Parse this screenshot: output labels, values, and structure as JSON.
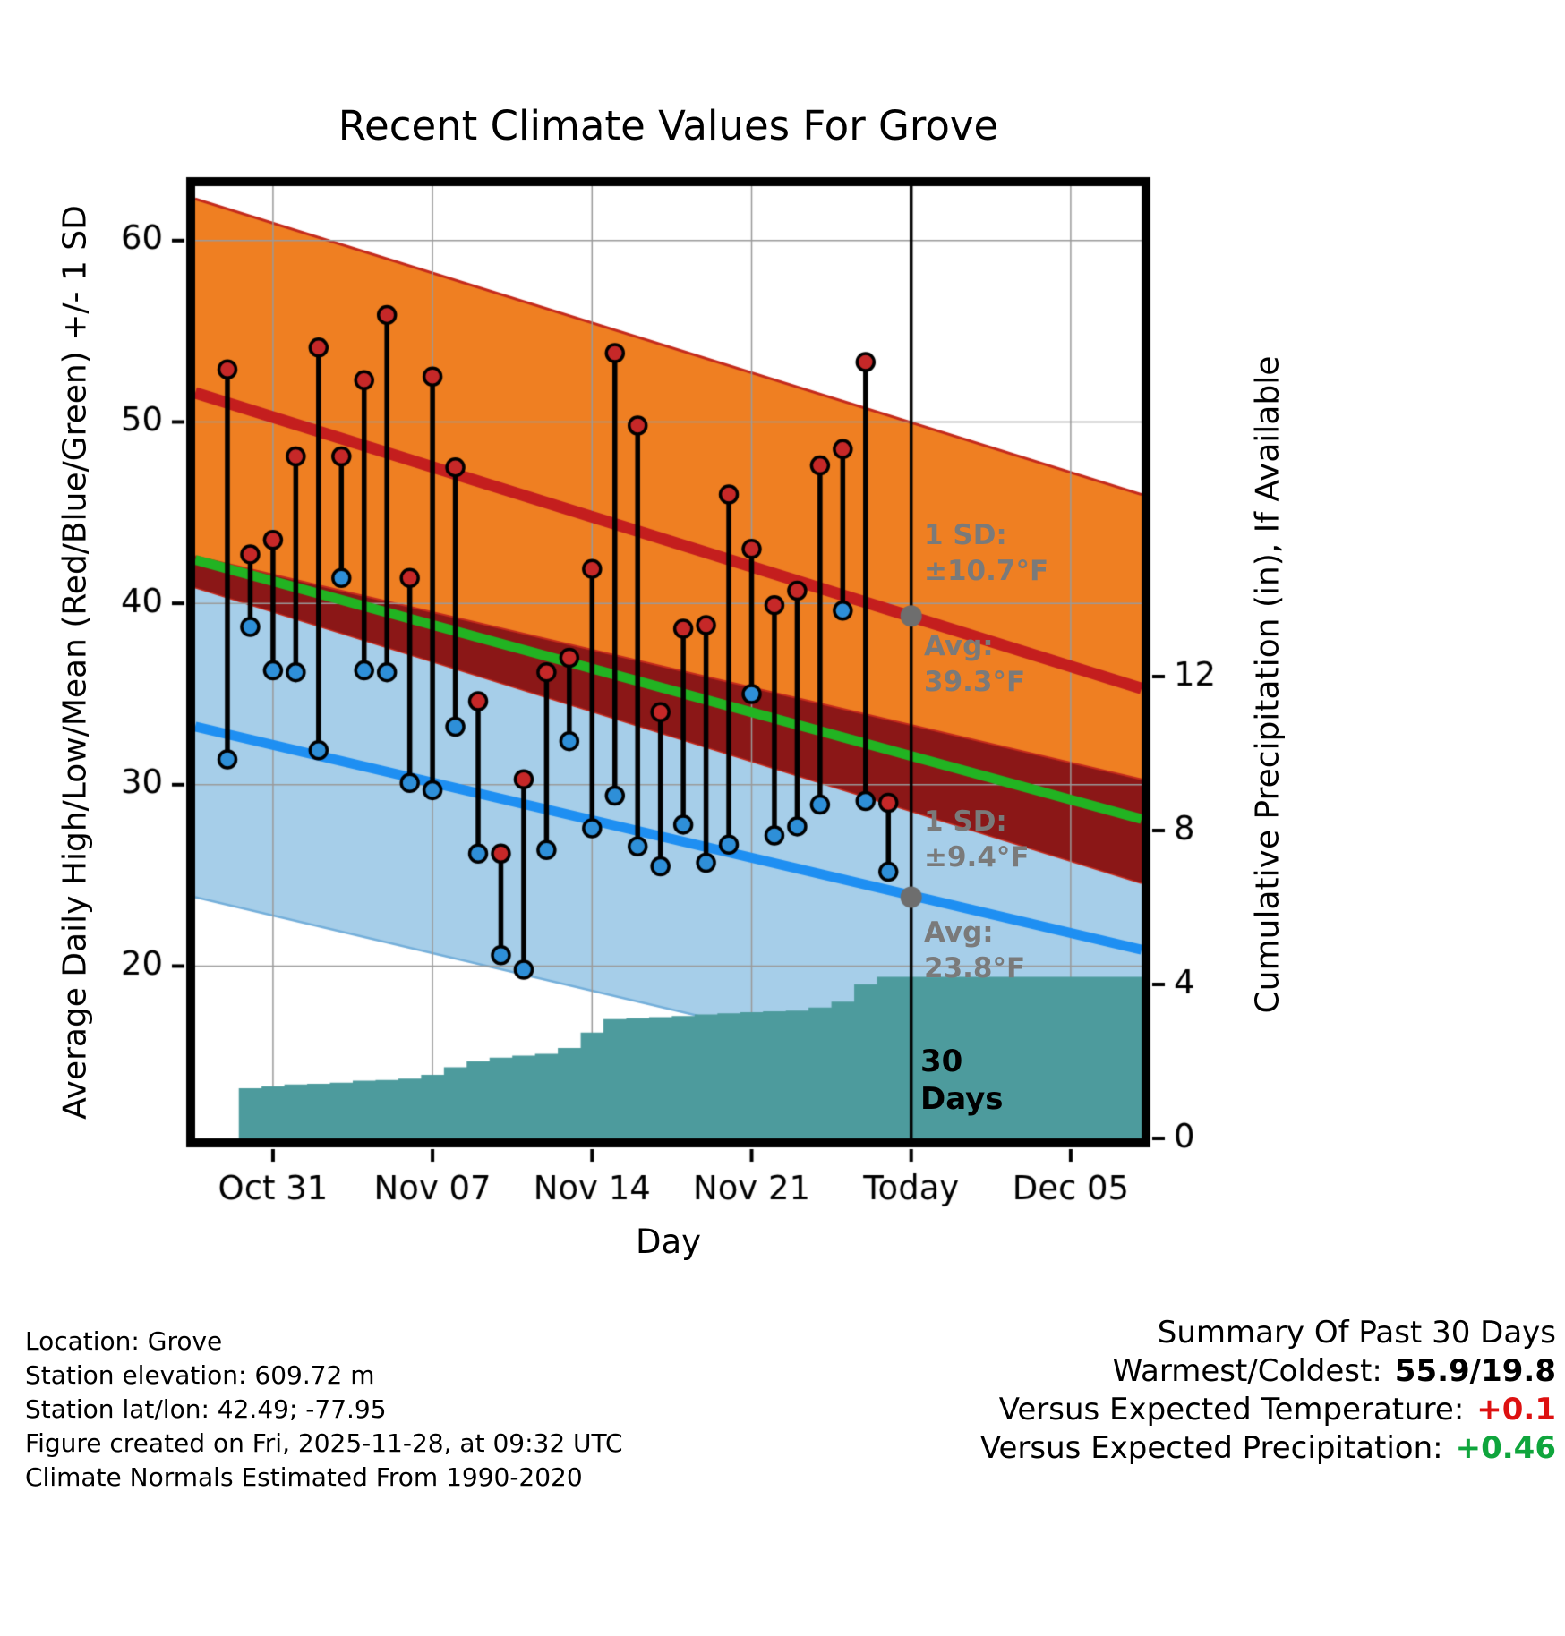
{
  "title": "Recent Climate Values For Grove",
  "axes": {
    "y_left_label": "Average Daily High/Low/Mean (Red/Blue/Green) +/- 1 SD",
    "y_right_label": "Cumulative Precipitation (in), If Available",
    "x_label": "Day"
  },
  "chart_data": {
    "type": "line",
    "title": "Recent Climate Values For Grove",
    "xlabel": "Day",
    "ylabel_left": "Average Daily High/Low/Mean (Red/Blue/Green) +/- 1 SD",
    "ylabel_right": "Cumulative Precipitation (in), If Available",
    "temp_axis": {
      "range": [
        10.5,
        63.0
      ],
      "ticks": [
        20,
        30,
        40,
        50,
        60
      ]
    },
    "precip_axis": {
      "ticks": [
        0,
        4,
        8,
        12
      ],
      "unit": "in"
    },
    "x_axis": {
      "ticks": [
        {
          "label": "Oct 31",
          "day": 2
        },
        {
          "label": "Nov 07",
          "day": 9
        },
        {
          "label": "Nov 14",
          "day": 16
        },
        {
          "label": "Nov 21",
          "day": 23
        },
        {
          "label": "Today",
          "day": 30
        },
        {
          "label": "Dec 05",
          "day": 37
        }
      ],
      "today_day": 30
    },
    "daily": {
      "dates": [
        "Oct 29",
        "Oct 30",
        "Oct 31",
        "Nov 01",
        "Nov 02",
        "Nov 03",
        "Nov 04",
        "Nov 05",
        "Nov 06",
        "Nov 07",
        "Nov 08",
        "Nov 09",
        "Nov 10",
        "Nov 11",
        "Nov 12",
        "Nov 13",
        "Nov 14",
        "Nov 15",
        "Nov 16",
        "Nov 17",
        "Nov 18",
        "Nov 19",
        "Nov 20",
        "Nov 21",
        "Nov 22",
        "Nov 23",
        "Nov 24",
        "Nov 25",
        "Nov 26",
        "Nov 27"
      ],
      "high": [
        52.9,
        42.7,
        43.5,
        48.1,
        54.1,
        48.1,
        52.3,
        55.9,
        41.4,
        52.5,
        47.5,
        34.6,
        26.2,
        30.3,
        36.2,
        37.0,
        41.9,
        53.8,
        49.8,
        34.0,
        38.6,
        38.8,
        46.0,
        43.0,
        39.9,
        40.7,
        47.6,
        48.5,
        53.3,
        29.0
      ],
      "low": [
        31.4,
        38.7,
        36.3,
        36.2,
        31.9,
        41.4,
        36.3,
        36.2,
        30.1,
        29.7,
        33.2,
        26.2,
        20.6,
        19.8,
        26.4,
        32.4,
        27.6,
        29.4,
        26.6,
        25.5,
        27.8,
        25.7,
        26.7,
        35.0,
        27.2,
        27.7,
        28.9,
        39.6,
        29.1,
        25.2
      ]
    },
    "normals": {
      "avg_high_edges": [
        51.6,
        35.3
      ],
      "avg_low_edges": [
        33.2,
        20.9
      ],
      "mean_edges": [
        42.4,
        28.1
      ],
      "high_sd": 10.7,
      "low_sd": 9.4,
      "avg_high_today": 39.3,
      "avg_low_today": 23.8
    },
    "precip_cumulative": [
      0.0,
      1.3,
      1.35,
      1.4,
      1.42,
      1.45,
      1.5,
      1.52,
      1.55,
      1.65,
      1.85,
      2.0,
      2.1,
      2.15,
      2.2,
      2.35,
      2.75,
      3.1,
      3.12,
      3.15,
      3.18,
      3.22,
      3.25,
      3.28,
      3.3,
      3.32,
      3.4,
      3.55,
      4.0,
      4.2
    ],
    "precip_future_value": 4.2
  },
  "annotations": {
    "high_sd": {
      "line1": "1 SD:",
      "line2": "±10.7°F"
    },
    "avg_high": {
      "line1": "Avg:",
      "line2": "39.3°F"
    },
    "low_sd": {
      "line1": "1 SD:",
      "line2": "±9.4°F"
    },
    "avg_low": {
      "line1": "Avg:",
      "line2": "23.8°F"
    },
    "today": {
      "line1": "30",
      "line2": "Days"
    }
  },
  "footer_left": [
    "Location: Grove",
    "Station elevation: 609.72 m",
    "Station lat/lon: 42.49; -77.95",
    "Figure created on Fri, 2025-11-28, at 09:32 UTC",
    "Climate Normals Estimated From 1990-2020"
  ],
  "summary": {
    "title": "Summary Of Past 30 Days",
    "rows": [
      {
        "label": "Warmest/Coldest:",
        "value": "55.9/19.8",
        "color": "#000000"
      },
      {
        "label": "Versus Expected Temperature:",
        "value": "+0.1",
        "color": "#dd1111"
      },
      {
        "label": "Versus Expected Precipitation:",
        "value": "+0.46",
        "color": "#0fa53c"
      }
    ]
  },
  "colors": {
    "high_band": "#EF7F22",
    "high_band_edge": "#C42A1C",
    "low_band": "#A6CEE9",
    "low_band_edge": "#74AFDA",
    "overlap_band": "#8B1717",
    "avg_high_line": "#C41E1E",
    "avg_low_line": "#1E8FF2",
    "mean_line": "#22B322",
    "precip_fill": "#4D9B9D",
    "high_dot": "#C62828",
    "low_dot": "#2E8FD8",
    "today_dot": "#6E6E6E",
    "grid": "#9A9A9A",
    "annotation_text": "#7A7A7A",
    "today_label": "#000000"
  }
}
